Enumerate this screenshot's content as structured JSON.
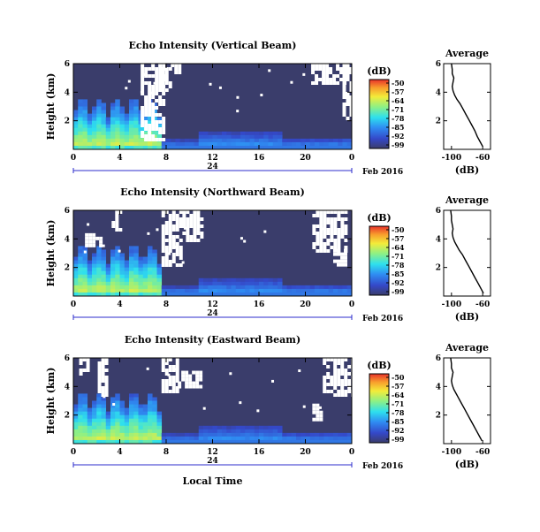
{
  "figure": {
    "xlabel": "Local Time",
    "date_label": "Feb 2016",
    "day_label": "24",
    "ylabel": "Height (km)",
    "colorbar_unit": "(dB)",
    "avg_title": "Average",
    "avg_xlabel": "(dB)"
  },
  "chart_data": [
    {
      "type": "heatmap",
      "title": "Echo Intensity (Vertical Beam)",
      "xlabel": "Local Time",
      "ylabel": "Height (km)",
      "x_ticks": [
        "0",
        "4",
        "8",
        "12",
        "16",
        "20",
        "0"
      ],
      "y_ticks": [
        "2",
        "4",
        "6"
      ],
      "xlim": [
        0,
        24
      ],
      "ylim": [
        0,
        6
      ],
      "colorbar": {
        "label": "(dB)",
        "ticks": [
          "-50",
          "-57",
          "-64",
          "-71",
          "-78",
          "-85",
          "-92",
          "-99"
        ],
        "range": [
          -99,
          -50
        ]
      },
      "colors": {
        "background_fill": "#3a3d6b",
        "missing": "#ffffff"
      }
    },
    {
      "type": "heatmap",
      "title": "Echo Intensity (Northward Beam)",
      "xlabel": "Local Time",
      "ylabel": "Height (km)",
      "x_ticks": [
        "0",
        "4",
        "8",
        "12",
        "16",
        "20",
        "0"
      ],
      "y_ticks": [
        "2",
        "4",
        "6"
      ],
      "xlim": [
        0,
        24
      ],
      "ylim": [
        0,
        6
      ],
      "colorbar": {
        "label": "(dB)",
        "ticks": [
          "-50",
          "-57",
          "-64",
          "-71",
          "-78",
          "-85",
          "-92",
          "-99"
        ],
        "range": [
          -99,
          -50
        ]
      }
    },
    {
      "type": "heatmap",
      "title": "Echo Intensity (Eastward Beam)",
      "xlabel": "Local Time",
      "ylabel": "Height (km)",
      "x_ticks": [
        "0",
        "4",
        "8",
        "12",
        "16",
        "20",
        "0"
      ],
      "y_ticks": [
        "2",
        "4",
        "6"
      ],
      "xlim": [
        0,
        24
      ],
      "ylim": [
        0,
        6
      ],
      "colorbar": {
        "label": "(dB)",
        "ticks": [
          "-50",
          "-57",
          "-64",
          "-71",
          "-78",
          "-85",
          "-92",
          "-99"
        ],
        "range": [
          -99,
          -50
        ]
      }
    },
    {
      "type": "line",
      "title": "Average",
      "xlabel": "(dB)",
      "x_ticks": [
        "-100",
        "-60"
      ],
      "y_ticks": [
        "2",
        "4",
        "6"
      ],
      "xlim": [
        -110,
        -50
      ],
      "ylim": [
        0,
        6
      ],
      "x": [
        -60,
        -63,
        -67,
        -70,
        -74,
        -78,
        -82,
        -86,
        -89,
        -93,
        -96,
        -98,
        -99,
        -98,
        -97,
        -99,
        -99,
        -100
      ],
      "y": [
        0.2,
        0.5,
        0.9,
        1.3,
        1.7,
        2.1,
        2.5,
        2.9,
        3.2,
        3.5,
        3.8,
        4.1,
        4.4,
        4.7,
        5.0,
        5.3,
        5.6,
        6.0
      ]
    },
    {
      "type": "line",
      "title": "Average",
      "xlabel": "(dB)",
      "x_ticks": [
        "-100",
        "-60"
      ],
      "y_ticks": [
        "2",
        "4",
        "6"
      ],
      "xlim": [
        -110,
        -50
      ],
      "ylim": [
        0,
        6
      ],
      "x": [
        -59,
        -62,
        -66,
        -70,
        -74,
        -78,
        -82,
        -86,
        -90,
        -93,
        -96,
        -98,
        -99,
        -98,
        -99,
        -100,
        -100,
        -101
      ],
      "y": [
        0.2,
        0.5,
        0.9,
        1.3,
        1.7,
        2.1,
        2.5,
        2.9,
        3.2,
        3.5,
        3.8,
        4.1,
        4.4,
        4.7,
        5.0,
        5.3,
        5.6,
        6.0
      ]
    },
    {
      "type": "line",
      "title": "Average",
      "xlabel": "(dB)",
      "x_ticks": [
        "-100",
        "-60"
      ],
      "y_ticks": [
        "2",
        "4",
        "6"
      ],
      "xlim": [
        -110,
        -50
      ],
      "ylim": [
        0,
        6
      ],
      "x": [
        -61,
        -64,
        -68,
        -72,
        -76,
        -80,
        -84,
        -88,
        -91,
        -94,
        -97,
        -99,
        -100,
        -99,
        -98,
        -100,
        -100,
        -101
      ],
      "y": [
        0.2,
        0.5,
        0.9,
        1.3,
        1.7,
        2.1,
        2.5,
        2.9,
        3.2,
        3.5,
        3.8,
        4.1,
        4.4,
        4.7,
        5.0,
        5.3,
        5.6,
        6.0
      ]
    }
  ]
}
